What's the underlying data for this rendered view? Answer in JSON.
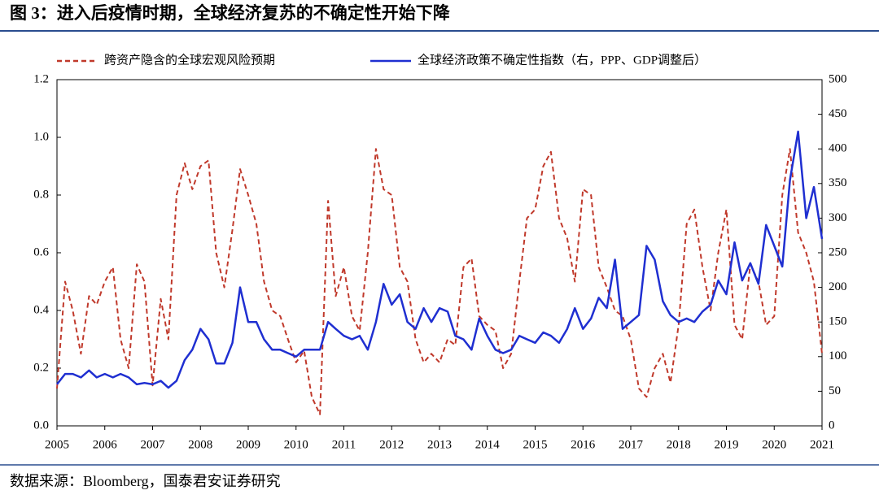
{
  "chart_data": {
    "type": "line",
    "title": "图 3：进入后疫情时期，全球经济复苏的不确定性开始下降",
    "source": "数据来源：Bloomberg，国泰君安证券研究",
    "xlim": [
      2005,
      2021
    ],
    "xticks": [
      2005,
      2006,
      2007,
      2008,
      2009,
      2010,
      2011,
      2012,
      2013,
      2014,
      2015,
      2016,
      2017,
      2018,
      2019,
      2020,
      2021
    ],
    "ylim": [
      0,
      1.2
    ],
    "yticks": [
      {
        "value": 0,
        "label": "0.0"
      },
      0.2,
      0.4,
      0.6,
      0.8,
      {
        "value": 1,
        "label": "1.0"
      },
      1.2
    ],
    "y2lim": [
      0,
      500
    ],
    "y2ticks": [
      0,
      50,
      100,
      150,
      200,
      250,
      300,
      350,
      400,
      450,
      500
    ],
    "x": [
      2005,
      2005.17,
      2005.33,
      2005.5,
      2005.67,
      2005.83,
      2006,
      2006.17,
      2006.33,
      2006.5,
      2006.67,
      2006.83,
      2007,
      2007.17,
      2007.33,
      2007.5,
      2007.67,
      2007.83,
      2008,
      2008.17,
      2008.33,
      2008.5,
      2008.67,
      2008.83,
      2009,
      2009.17,
      2009.33,
      2009.5,
      2009.67,
      2009.83,
      2010,
      2010.17,
      2010.33,
      2010.5,
      2010.67,
      2010.83,
      2011,
      2011.17,
      2011.33,
      2011.5,
      2011.67,
      2011.83,
      2012,
      2012.17,
      2012.33,
      2012.5,
      2012.67,
      2012.83,
      2013,
      2013.17,
      2013.33,
      2013.5,
      2013.67,
      2013.83,
      2014,
      2014.17,
      2014.33,
      2014.5,
      2014.67,
      2014.83,
      2015,
      2015.17,
      2015.33,
      2015.5,
      2015.67,
      2015.83,
      2016,
      2016.17,
      2016.33,
      2016.5,
      2016.67,
      2016.83,
      2017,
      2017.17,
      2017.33,
      2017.5,
      2017.67,
      2017.83,
      2018,
      2018.17,
      2018.33,
      2018.5,
      2018.67,
      2018.83,
      2019,
      2019.17,
      2019.33,
      2019.5,
      2019.67,
      2019.83,
      2020,
      2020.17,
      2020.33,
      2020.5,
      2020.67,
      2020.83,
      2021
    ],
    "series": [
      {
        "name": "跨资产隐含的全球宏观风险预期",
        "color": "#c0392b",
        "dash": true,
        "values": [
          0.13,
          0.5,
          0.4,
          0.25,
          0.45,
          0.42,
          0.5,
          0.55,
          0.3,
          0.2,
          0.56,
          0.5,
          0.14,
          0.44,
          0.3,
          0.8,
          0.91,
          0.82,
          0.9,
          0.92,
          0.6,
          0.48,
          0.68,
          0.89,
          0.8,
          0.7,
          0.5,
          0.4,
          0.38,
          0.3,
          0.22,
          0.26,
          0.1,
          0.04,
          0.78,
          0.45,
          0.55,
          0.38,
          0.33,
          0.6,
          0.96,
          0.82,
          0.8,
          0.55,
          0.5,
          0.3,
          0.22,
          0.25,
          0.22,
          0.3,
          0.28,
          0.55,
          0.58,
          0.38,
          0.35,
          0.33,
          0.2,
          0.25,
          0.5,
          0.72,
          0.75,
          0.9,
          0.95,
          0.72,
          0.65,
          0.5,
          0.82,
          0.8,
          0.55,
          0.48,
          0.4,
          0.38,
          0.3,
          0.13,
          0.1,
          0.2,
          0.25,
          0.15,
          0.35,
          0.7,
          0.75,
          0.55,
          0.4,
          0.6,
          0.75,
          0.35,
          0.3,
          0.56,
          0.5,
          0.35,
          0.38,
          0.8,
          0.96,
          0.67,
          0.6,
          0.5,
          0.25
        ]
      },
      {
        "name": "全球经济政策不确定性指数（右，PPP、GDP调整后）",
        "color": "#1f2fd1",
        "axis": "y2",
        "values": [
          60,
          75,
          75,
          70,
          80,
          70,
          75,
          70,
          75,
          70,
          60,
          62,
          60,
          65,
          55,
          65,
          95,
          110,
          140,
          125,
          90,
          90,
          120,
          200,
          150,
          150,
          125,
          110,
          110,
          105,
          100,
          110,
          110,
          110,
          150,
          140,
          130,
          125,
          130,
          110,
          150,
          205,
          175,
          190,
          150,
          140,
          170,
          150,
          170,
          165,
          130,
          125,
          110,
          155,
          130,
          110,
          105,
          110,
          130,
          125,
          120,
          135,
          130,
          120,
          140,
          170,
          140,
          155,
          185,
          170,
          240,
          140,
          150,
          160,
          260,
          240,
          180,
          160,
          150,
          155,
          150,
          165,
          175,
          210,
          190,
          265,
          210,
          235,
          205,
          290,
          260,
          230,
          355,
          425,
          300,
          345,
          270
        ]
      }
    ]
  }
}
